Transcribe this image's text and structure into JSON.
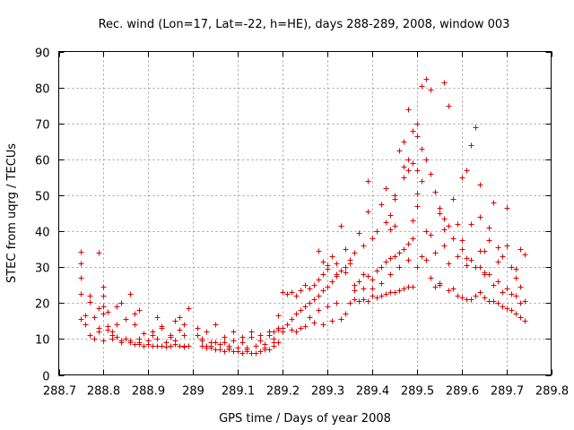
{
  "chart_data": {
    "type": "scatter",
    "title": "Rec. wind (Lon=17, Lat=-22, h=HE), days 288-289, 2008, window 003",
    "xlabel": "GPS time / Days of year 2008",
    "ylabel": "STEC from uqrg / TECUs",
    "xlim": [
      288.7,
      289.8
    ],
    "ylim": [
      0,
      90
    ],
    "xticks": [
      "288.7",
      "288.8",
      "288.9",
      "289",
      "289.1",
      "289.2",
      "289.3",
      "289.4",
      "289.5",
      "289.6",
      "289.7",
      "289.8"
    ],
    "yticks": [
      "0",
      "10",
      "20",
      "30",
      "40",
      "50",
      "60",
      "70",
      "80",
      "90"
    ],
    "grid": true,
    "marker": "plus",
    "color": "#e00000",
    "x": [
      288.75,
      288.75,
      288.75,
      288.75,
      288.75,
      288.76,
      288.77,
      288.77,
      288.78,
      288.79,
      288.79,
      288.8,
      288.8,
      288.8,
      288.81,
      288.82,
      288.82,
      288.83,
      288.84,
      288.85,
      288.86,
      288.87,
      288.88,
      288.88,
      288.89,
      288.9,
      288.91,
      288.92,
      288.93,
      288.94,
      288.95,
      288.96,
      288.97,
      288.98,
      288.98,
      288.99,
      288.77,
      288.79,
      288.81,
      288.83,
      288.85,
      288.87,
      288.89,
      288.91,
      288.93,
      288.95,
      288.97,
      288.99,
      288.78,
      288.8,
      288.82,
      288.84,
      288.86,
      288.88,
      288.9,
      288.92,
      288.94,
      288.96,
      288.8,
      288.84,
      288.88,
      288.92,
      288.96,
      288.98,
      288.76,
      288.81,
      288.86,
      288.91,
      288.95,
      288.98,
      288.79,
      288.83,
      288.87,
      288.93,
      288.97,
      289.01,
      289.01,
      289.02,
      289.02,
      289.03,
      289.03,
      289.04,
      289.05,
      289.05,
      289.06,
      289.07,
      289.07,
      289.08,
      289.09,
      289.09,
      289.1,
      289.11,
      289.11,
      289.12,
      289.13,
      289.13,
      289.14,
      289.15,
      289.15,
      289.16,
      289.17,
      289.18,
      289.18,
      289.19,
      289.19,
      289.02,
      289.04,
      289.06,
      289.08,
      289.1,
      289.12,
      289.14,
      289.16,
      289.18,
      289.03,
      289.05,
      289.07,
      289.09,
      289.11,
      289.13,
      289.15,
      289.17,
      289.04,
      289.08,
      289.12,
      289.16,
      289.17,
      289.18,
      289.19,
      289.2,
      289.2,
      289.21,
      289.21,
      289.22,
      289.22,
      289.23,
      289.23,
      289.24,
      289.24,
      289.25,
      289.25,
      289.26,
      289.26,
      289.27,
      289.27,
      289.28,
      289.28,
      289.29,
      289.29,
      289.3,
      289.3,
      289.31,
      289.31,
      289.32,
      289.32,
      289.33,
      289.33,
      289.34,
      289.34,
      289.35,
      289.19,
      289.21,
      289.23,
      289.25,
      289.27,
      289.29,
      289.31,
      289.33,
      289.2,
      289.22,
      289.24,
      289.26,
      289.28,
      289.3,
      289.32,
      289.34,
      289.28,
      289.29,
      289.32,
      289.3,
      289.34,
      289.35,
      289.35,
      289.36,
      289.36,
      289.37,
      289.37,
      289.38,
      289.38,
      289.39,
      289.39,
      289.4,
      289.4,
      289.41,
      289.41,
      289.42,
      289.42,
      289.43,
      289.43,
      289.44,
      289.44,
      289.45,
      289.45,
      289.46,
      289.46,
      289.47,
      289.47,
      289.48,
      289.48,
      289.49,
      289.49,
      289.36,
      289.38,
      289.4,
      289.42,
      289.44,
      289.46,
      289.48,
      289.37,
      289.39,
      289.41,
      289.43,
      289.45,
      289.47,
      289.49,
      289.36,
      289.38,
      289.4,
      289.42,
      289.44,
      289.46,
      289.48,
      289.39,
      289.43,
      289.47,
      289.45,
      289.48,
      289.44,
      289.5,
      289.5,
      289.5,
      289.51,
      289.51,
      289.52,
      289.52,
      289.53,
      289.53,
      289.54,
      289.54,
      289.55,
      289.55,
      289.56,
      289.56,
      289.57,
      289.57,
      289.58,
      289.58,
      289.59,
      289.59,
      289.6,
      289.6,
      289.61,
      289.61,
      289.62,
      289.62,
      289.63,
      289.63,
      289.64,
      289.64,
      289.65,
      289.65,
      289.66,
      289.66,
      289.67,
      289.67,
      289.68,
      289.68,
      289.69,
      289.69,
      289.7,
      289.7,
      289.71,
      289.71,
      289.72,
      289.72,
      289.73,
      289.73,
      289.74,
      289.74,
      289.5,
      289.52,
      289.54,
      289.56,
      289.58,
      289.6,
      289.62,
      289.64,
      289.66,
      289.68,
      289.7,
      289.72,
      289.74,
      289.51,
      289.53,
      289.55,
      289.57,
      289.59,
      289.61,
      289.63,
      289.65,
      289.67,
      289.69,
      289.71,
      289.73,
      289.52,
      289.56,
      289.6,
      289.64,
      289.68,
      289.72,
      289.47,
      289.48,
      289.49,
      289.5,
      289.51,
      289.55,
      289.57,
      289.62,
      289.64,
      289.65,
      289.5,
      289.45,
      289.53,
      289.49,
      289.7,
      289.73,
      289.66,
      289.61
    ],
    "y": [
      34.3,
      31.0,
      27.0,
      22.5,
      15.6,
      14.0,
      22.0,
      20.3,
      16.0,
      18.5,
      13.0,
      24.5,
      22.0,
      17.0,
      13.5,
      12.0,
      11.0,
      10.5,
      9.5,
      10.0,
      9.0,
      8.5,
      8.5,
      9.0,
      8.0,
      8.5,
      8.0,
      8.2,
      8.0,
      7.8,
      8.0,
      8.5,
      8.0,
      8.2,
      7.8,
      8.0,
      11.0,
      12.0,
      12.5,
      14.0,
      15.5,
      17.0,
      11.5,
      12.0,
      13.0,
      11.0,
      12.5,
      18.5,
      10.0,
      9.5,
      10.0,
      9.0,
      9.5,
      10.0,
      9.5,
      10.0,
      9.0,
      9.5,
      19.0,
      20.0,
      18.0,
      16.0,
      15.0,
      14.0,
      16.5,
      17.5,
      22.5,
      11.0,
      10.5,
      11.0,
      34.0,
      19.0,
      14.0,
      13.5,
      16.0,
      13.0,
      11.0,
      9.5,
      8.0,
      7.5,
      12.0,
      7.5,
      14.0,
      7.0,
      7.0,
      9.0,
      6.5,
      7.0,
      12.0,
      6.5,
      6.5,
      6.0,
      10.5,
      6.5,
      6.0,
      12.0,
      6.0,
      6.5,
      9.5,
      7.0,
      7.0,
      8.0,
      10.0,
      12.5,
      9.0,
      10.0,
      9.0,
      8.5,
      8.0,
      7.5,
      7.5,
      8.0,
      8.5,
      9.0,
      8.0,
      9.0,
      10.5,
      9.5,
      9.0,
      10.5,
      11.0,
      12.0,
      8.0,
      7.5,
      7.0,
      7.5,
      11.0,
      12.0,
      16.5,
      13.0,
      23.0,
      14.0,
      22.5,
      15.5,
      23.0,
      17.0,
      22.0,
      18.0,
      23.5,
      19.0,
      25.0,
      20.0,
      24.0,
      21.0,
      25.0,
      22.0,
      26.5,
      23.5,
      28.0,
      24.5,
      30.5,
      26.0,
      33.0,
      28.0,
      31.0,
      29.0,
      41.5,
      30.0,
      35.0,
      31.0,
      13.0,
      14.0,
      12.0,
      13.5,
      14.5,
      14.0,
      15.0,
      15.5,
      12.0,
      12.5,
      13.0,
      16.0,
      18.0,
      19.0,
      20.0,
      17.0,
      34.5,
      31.5,
      27.5,
      29.5,
      28.5,
      20.0,
      32.0,
      21.0,
      34.0,
      20.5,
      39.5,
      21.0,
      36.0,
      20.5,
      45.5,
      22.0,
      38.0,
      21.5,
      40.0,
      22.0,
      47.5,
      22.5,
      42.5,
      23.0,
      40.5,
      23.0,
      50.0,
      23.5,
      62.5,
      24.0,
      58.0,
      24.5,
      74.0,
      24.5,
      59.0,
      25.0,
      28.0,
      24.0,
      30.0,
      32.5,
      34.0,
      36.5,
      26.0,
      27.5,
      29.0,
      31.5,
      33.0,
      35.0,
      38.0,
      23.5,
      24.0,
      26.5,
      25.5,
      28.0,
      30.0,
      32.0,
      54.0,
      52.0,
      55.0,
      49.0,
      57.0,
      44.5,
      66.5,
      70.0,
      57.0,
      80.5,
      63.0,
      82.5,
      60.0,
      79.5,
      56.0,
      51.0,
      24.5,
      45.0,
      25.0,
      81.5,
      43.5,
      75.0,
      23.5,
      49.0,
      24.0,
      42.0,
      22.0,
      55.0,
      21.5,
      57.0,
      21.0,
      42.0,
      21.0,
      69.0,
      22.0,
      44.0,
      23.0,
      34.5,
      21.5,
      37.5,
      20.5,
      48.0,
      20.5,
      35.5,
      20.0,
      33.0,
      19.0,
      36.0,
      18.5,
      30.0,
      18.0,
      27.0,
      17.0,
      35.0,
      16.0,
      33.5,
      15.0,
      30.0,
      32.0,
      34.0,
      36.0,
      38.0,
      35.0,
      32.0,
      30.0,
      28.0,
      26.0,
      24.0,
      22.0,
      20.5,
      33.0,
      27.0,
      25.5,
      31.0,
      33.0,
      32.5,
      30.0,
      28.0,
      25.0,
      23.0,
      22.5,
      20.0,
      40.0,
      40.5,
      37.5,
      34.5,
      31.5,
      29.5,
      65.0,
      60.0,
      68.0,
      47.0,
      54.0,
      46.5,
      41.5,
      64.0,
      53.0,
      28.5,
      50.5,
      41.5,
      39.0,
      43.0,
      46.5,
      24.5,
      41.0,
      30.5
    ]
  }
}
